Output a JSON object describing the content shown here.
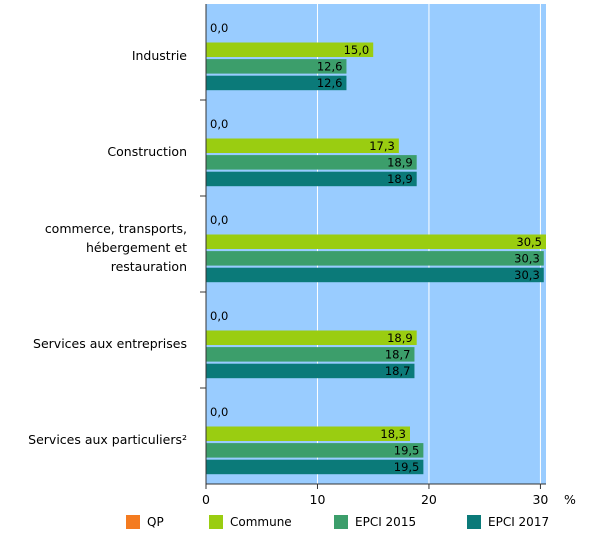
{
  "chart_data": {
    "type": "bar",
    "orientation": "horizontal",
    "categories": [
      [
        "Industrie"
      ],
      [
        "Construction"
      ],
      [
        "commerce, transports,",
        "hébergement et",
        "restauration"
      ],
      [
        "Services aux entreprises"
      ],
      [
        "Services aux particuliers²"
      ]
    ],
    "series": [
      {
        "name": "QP",
        "color": "#f47b20",
        "values": [
          0.0,
          0.0,
          0.0,
          0.0,
          0.0
        ],
        "labels": [
          "0,0",
          "0,0",
          "0,0",
          "0,0",
          "0,0"
        ]
      },
      {
        "name": "Commune",
        "color": "#9acd11",
        "values": [
          15.0,
          17.3,
          30.5,
          18.9,
          18.3
        ],
        "labels": [
          "15,0",
          "17,3",
          "30,5",
          "18,9",
          "18,3"
        ]
      },
      {
        "name": "EPCI 2015",
        "color": "#3c9e6b",
        "values": [
          12.6,
          18.9,
          30.3,
          18.7,
          19.5
        ],
        "labels": [
          "12,6",
          "18,9",
          "30,3",
          "18,7",
          "19,5"
        ]
      },
      {
        "name": "EPCI 2017",
        "color": "#0b7a79",
        "values": [
          12.6,
          18.9,
          30.3,
          18.7,
          19.5
        ],
        "labels": [
          "12,6",
          "18,9",
          "30,3",
          "18,7",
          "19,5"
        ]
      }
    ],
    "xlim": [
      0,
      30.5
    ],
    "xticks": [
      0,
      10,
      20,
      30
    ],
    "xtick_labels": [
      "0",
      "10",
      "20",
      "30"
    ],
    "unit": "%",
    "plot_background": "#99ccff",
    "grid": true,
    "legend_position": "bottom"
  }
}
